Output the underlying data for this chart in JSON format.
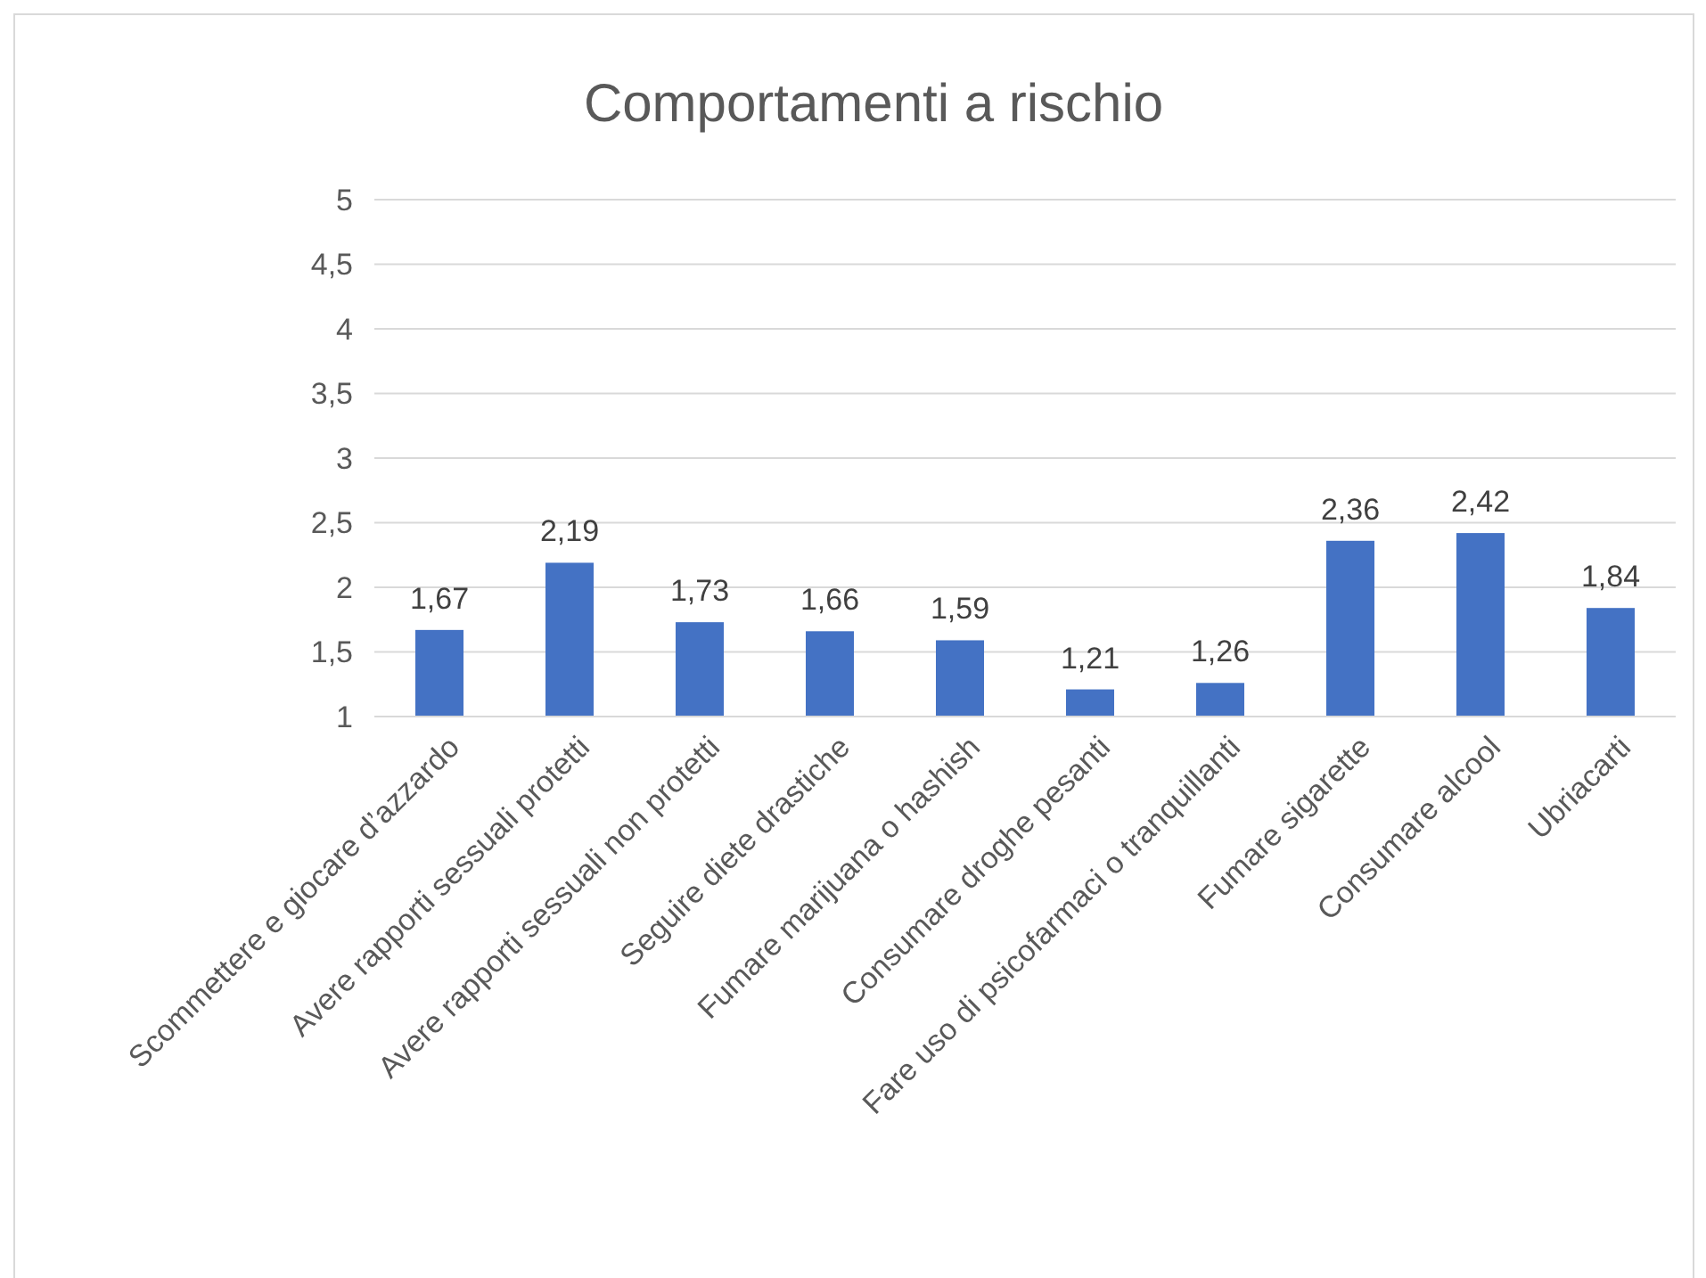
{
  "chart_data": {
    "type": "bar",
    "title": "Comportamenti a rischio",
    "categories": [
      "Scommettere e giocare d’azzardo",
      "Avere rapporti sessuali protetti",
      "Avere rapporti sessuali non protetti",
      "Seguire diete drastiche",
      "Fumare marijuana o hashish",
      "Consumare droghe pesanti",
      "Fare uso di psicofarmaci o tranquillanti",
      "Fumare sigarette",
      "Consumare alcool",
      "Ubriacarti"
    ],
    "values": [
      1.67,
      2.19,
      1.73,
      1.66,
      1.59,
      1.21,
      1.26,
      2.36,
      2.42,
      1.84
    ],
    "value_labels": [
      "1,67",
      "2,19",
      "1,73",
      "1,66",
      "1,59",
      "1,21",
      "1,26",
      "2,36",
      "2,42",
      "1,84"
    ],
    "color": "#4472c4",
    "ylim": [
      1,
      5
    ],
    "yticks": [
      1,
      {
        "value": 1.5,
        "label": "1,5"
      },
      2,
      {
        "value": 2.5,
        "label": "2,5"
      },
      3,
      {
        "value": 3.5,
        "label": "3,5"
      },
      4,
      {
        "value": 4.5,
        "label": "4,5"
      },
      5
    ],
    "grid": "y"
  }
}
